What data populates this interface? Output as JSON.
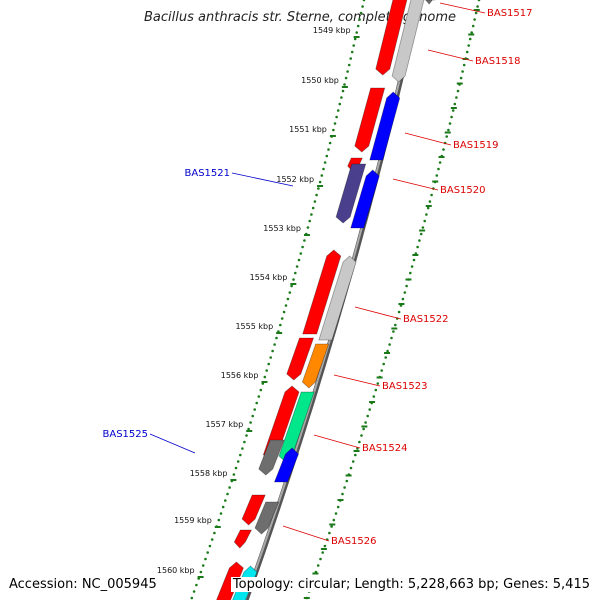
{
  "title": "Bacillus anthracis str. Sterne, complete genome",
  "footer": {
    "accession": "Accession: NC_005945",
    "summary": "Topology: circular; Length: 5,228,663 bp; Genes: 5,415"
  },
  "ticks": [
    "1549 kbp",
    "1550 kbp",
    "1551 kbp",
    "1552 kbp",
    "1553 kbp",
    "1554 kbp",
    "1555 kbp",
    "1556 kbp",
    "1557 kbp",
    "1558 kbp",
    "1559 kbp",
    "1560 kbp"
  ],
  "gene_labels": [
    {
      "text": "BAS1517",
      "color": "#dd0000"
    },
    {
      "text": "BAS1518",
      "color": "#dd0000"
    },
    {
      "text": "BAS1519",
      "color": "#dd0000"
    },
    {
      "text": "BAS1520",
      "color": "#dd0000"
    },
    {
      "text": "BAS1521",
      "color": "#0000cc"
    },
    {
      "text": "BAS1522",
      "color": "#dd0000"
    },
    {
      "text": "BAS1523",
      "color": "#dd0000"
    },
    {
      "text": "BAS1524",
      "color": "#dd0000"
    },
    {
      "text": "BAS1525",
      "color": "#0000cc"
    },
    {
      "text": "BAS1526",
      "color": "#dd0000"
    }
  ],
  "colors": {
    "red": "#ff0000",
    "blue": "#0000ff",
    "grey": "#6e6e6e",
    "light_grey": "#c8c8c8",
    "orange": "#ff8800",
    "green": "#00e68a",
    "cyan": "#00e5ee",
    "slate": "#4a3f8c",
    "tick_green": "#1a7a1a",
    "backbone": "#808080"
  }
}
